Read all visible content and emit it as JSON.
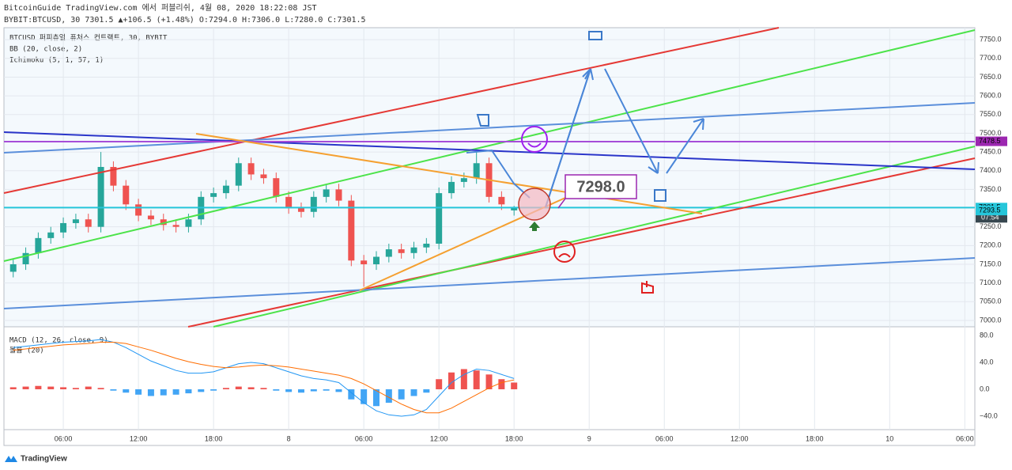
{
  "header": {
    "title": "BitcoinGuide TradingView.com 에서 퍼블리쉬, 4월 08, 2020 18:22:08 JST",
    "symbol_line": "BYBIT:BTCUSD, 30 7301.5 ▲+106.5 (+1.48%) O:7294.0 H:7306.0 L:7280.0 C:7301.5"
  },
  "legend": {
    "symbol": "BTCUSD 퍼피츄얼 퓨처스 컨트랙트, 30, BYBIT",
    "bb": "BB (20, close, 2)",
    "ichimoku": "Ichimoku (5, 1, 57, 1)"
  },
  "annotations": {
    "callout": "7298.0",
    "price_tags": [
      7478.5,
      7301.5,
      7293.5
    ],
    "price_tag_colors": [
      "#9c27b0",
      "#26c6da",
      "#26c6da"
    ],
    "timer": "07:54"
  },
  "footer": {
    "brand": "TradingView"
  },
  "chart_data": [
    {
      "type": "candlestick",
      "x": [
        2,
        3,
        4,
        5,
        6,
        7,
        8,
        9,
        10,
        11,
        12,
        13,
        14,
        15,
        16,
        17,
        18,
        19,
        20,
        21,
        22,
        23,
        24,
        25,
        26,
        27,
        28,
        29,
        30,
        31,
        32,
        33,
        34,
        35,
        36,
        37,
        38,
        39,
        40,
        41,
        42
      ],
      "open": [
        7130,
        7150,
        7180,
        7220,
        7235,
        7260,
        7270,
        7250,
        7410,
        7360,
        7310,
        7280,
        7270,
        7255,
        7250,
        7270,
        7330,
        7340,
        7360,
        7420,
        7390,
        7380,
        7330,
        7300,
        7290,
        7330,
        7350,
        7320,
        7160,
        7150,
        7170,
        7190,
        7180,
        7195,
        7205,
        7340,
        7370,
        7380,
        7420,
        7330,
        7294
      ],
      "high": [
        7165,
        7195,
        7235,
        7250,
        7275,
        7285,
        7285,
        7450,
        7425,
        7375,
        7325,
        7295,
        7285,
        7270,
        7285,
        7345,
        7355,
        7375,
        7435,
        7435,
        7405,
        7395,
        7345,
        7315,
        7345,
        7365,
        7365,
        7335,
        7175,
        7185,
        7205,
        7205,
        7210,
        7220,
        7355,
        7385,
        7395,
        7450,
        7435,
        7345,
        7306
      ],
      "low": [
        7115,
        7135,
        7165,
        7205,
        7220,
        7245,
        7235,
        7235,
        7345,
        7295,
        7265,
        7255,
        7240,
        7235,
        7235,
        7255,
        7315,
        7325,
        7345,
        7375,
        7365,
        7315,
        7285,
        7275,
        7275,
        7315,
        7305,
        7145,
        7090,
        7135,
        7155,
        7165,
        7165,
        7180,
        7190,
        7325,
        7355,
        7365,
        7315,
        7295,
        7280
      ],
      "close": [
        7150,
        7180,
        7220,
        7235,
        7260,
        7270,
        7250,
        7410,
        7360,
        7310,
        7280,
        7270,
        7255,
        7250,
        7270,
        7330,
        7340,
        7360,
        7420,
        7390,
        7380,
        7330,
        7300,
        7290,
        7330,
        7350,
        7320,
        7160,
        7150,
        7170,
        7190,
        7180,
        7195,
        7205,
        7340,
        7370,
        7380,
        7420,
        7330,
        7310,
        7301.5
      ],
      "up_color": "#26a69a",
      "down_color": "#ef5350",
      "xlim": [
        1.26,
        78.8
      ],
      "ylim": [
        6983,
        7782
      ],
      "yticks": [
        {
          "value": 7000,
          "label": "7000.0"
        },
        {
          "value": 7050,
          "label": "7050.0"
        },
        {
          "value": 7100,
          "label": "7100.0"
        },
        {
          "value": 7150,
          "label": "7150.0"
        },
        {
          "value": 7200,
          "label": "7200.0"
        },
        {
          "value": 7250,
          "label": "7250.0"
        },
        {
          "value": 7300,
          "label": "7300.0"
        },
        {
          "value": 7350,
          "label": "7350.0"
        },
        {
          "value": 7400,
          "label": "7400.0"
        },
        {
          "value": 7450,
          "label": "7450.0"
        },
        {
          "value": 7500,
          "label": "7500.0"
        },
        {
          "value": 7550,
          "label": "7550.0"
        },
        {
          "value": 7600,
          "label": "7600.0"
        },
        {
          "value": 7650,
          "label": "7650.0"
        },
        {
          "value": 7700,
          "label": "7700.0"
        },
        {
          "value": 7750,
          "label": "7750.0"
        }
      ],
      "xticks": [
        {
          "value": 6,
          "label": "06:00"
        },
        {
          "value": 12,
          "label": "12:00"
        },
        {
          "value": 18,
          "label": "18:00"
        },
        {
          "value": 24,
          "label": "8"
        },
        {
          "value": 30,
          "label": "06:00"
        },
        {
          "value": 36,
          "label": "12:00"
        },
        {
          "value": 42,
          "label": "18:00"
        },
        {
          "value": 48,
          "label": "9"
        },
        {
          "value": 54,
          "label": "06:00"
        },
        {
          "value": 60,
          "label": "12:00"
        },
        {
          "value": 66,
          "label": "18:00"
        },
        {
          "value": 72,
          "label": "10"
        },
        {
          "value": 78,
          "label": "06:00"
        }
      ],
      "grid": true
    },
    {
      "type": "macd",
      "legend": [
        "MACD (12, 26, close, 9)",
        "볼륨 (20)"
      ],
      "x": [
        2,
        3,
        4,
        5,
        6,
        7,
        8,
        9,
        10,
        11,
        12,
        13,
        14,
        15,
        16,
        17,
        18,
        19,
        20,
        21,
        22,
        23,
        24,
        25,
        26,
        27,
        28,
        29,
        30,
        31,
        32,
        33,
        34,
        35,
        36,
        37,
        38,
        39,
        40,
        41,
        42
      ],
      "histogram": {
        "positive_color": "#ef5350",
        "negative_color": "#42a5f5",
        "values": [
          3,
          4,
          5,
          4,
          3,
          2,
          4,
          2,
          -2,
          -5,
          -8,
          -10,
          -9,
          -8,
          -6,
          -4,
          -2,
          2,
          4,
          3,
          2,
          -2,
          -4,
          -5,
          -3,
          -2,
          -4,
          -15,
          -22,
          -25,
          -20,
          -15,
          -10,
          -5,
          15,
          25,
          30,
          28,
          22,
          15,
          10
        ]
      },
      "series": [
        {
          "color": "#2196f3",
          "values": [
            62,
            64,
            66,
            68,
            70,
            71,
            72,
            74,
            70,
            62,
            52,
            42,
            35,
            28,
            24,
            24,
            26,
            32,
            38,
            40,
            38,
            32,
            26,
            20,
            16,
            14,
            10,
            -5,
            -20,
            -32,
            -38,
            -40,
            -38,
            -30,
            -10,
            10,
            22,
            30,
            28,
            22,
            16
          ]
        },
        {
          "color": "#ff6d00",
          "values": [
            58,
            60,
            62,
            64,
            66,
            67,
            68,
            70,
            70,
            68,
            63,
            58,
            52,
            46,
            41,
            37,
            34,
            32,
            33,
            35,
            36,
            35,
            33,
            30,
            27,
            24,
            21,
            16,
            8,
            -2,
            -12,
            -22,
            -30,
            -35,
            -35,
            -28,
            -18,
            -8,
            2,
            10,
            14
          ]
        }
      ],
      "xlim": [
        1.26,
        78.8
      ],
      "ylim": [
        -60,
        92.9
      ],
      "yticks": [
        {
          "value": 80,
          "label": "80.0"
        },
        {
          "value": 40,
          "label": "40.0"
        },
        {
          "value": 0,
          "label": "0.0"
        },
        {
          "value": -40,
          "label": "−40.0"
        }
      ]
    }
  ]
}
